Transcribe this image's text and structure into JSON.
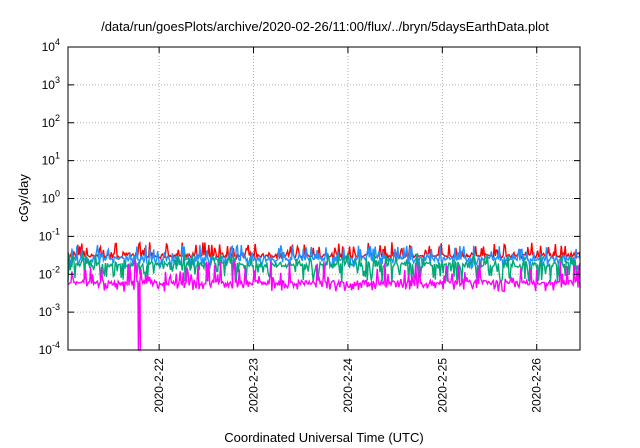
{
  "chart_data": {
    "type": "line",
    "title": "/data/run/goesPlots/archive/2020-02-26/11:00/flux/../bryn/5daysEarthData.plot",
    "xlabel": "Coordinated Universal Time (UTC)",
    "ylabel": "cGy/day",
    "yscale": "log",
    "ylim": [
      0.0001,
      10000
    ],
    "xlim": [
      "2020-02-21 00:50",
      "2020-02-26 11:00"
    ],
    "yticks": [
      {
        "base": "10",
        "exp": "-4",
        "value": 0.0001
      },
      {
        "base": "10",
        "exp": "-3",
        "value": 0.001
      },
      {
        "base": "10",
        "exp": "-2",
        "value": 0.01
      },
      {
        "base": "10",
        "exp": "-1",
        "value": 0.1
      },
      {
        "base": "10",
        "exp": "0",
        "value": 1
      },
      {
        "base": "10",
        "exp": "1",
        "value": 10
      },
      {
        "base": "10",
        "exp": "2",
        "value": 100
      },
      {
        "base": "10",
        "exp": "3",
        "value": 1000
      },
      {
        "base": "10",
        "exp": "4",
        "value": 10000
      }
    ],
    "xticks": [
      {
        "label": "2020-2-22",
        "day": 22
      },
      {
        "label": "2020-2-23",
        "day": 23
      },
      {
        "label": "2020-2-24",
        "day": 24
      },
      {
        "label": "2020-2-25",
        "day": 25
      },
      {
        "label": "2020-2-26",
        "day": 26
      }
    ],
    "grid": true,
    "series": [
      {
        "color": "#ff0000",
        "base": 0.032,
        "min": 0.026,
        "max": 0.07
      },
      {
        "color": "#1e90ff",
        "base": 0.026,
        "min": 0.014,
        "max": 0.06
      },
      {
        "color": "#00a878",
        "base": 0.018,
        "min": 0.006,
        "max": 0.035
      },
      {
        "color": "#ff00ff",
        "base": 0.006,
        "min": 0.0035,
        "max": 0.022,
        "dropout": {
          "day": 21.78,
          "value": 0.0001
        }
      }
    ]
  }
}
